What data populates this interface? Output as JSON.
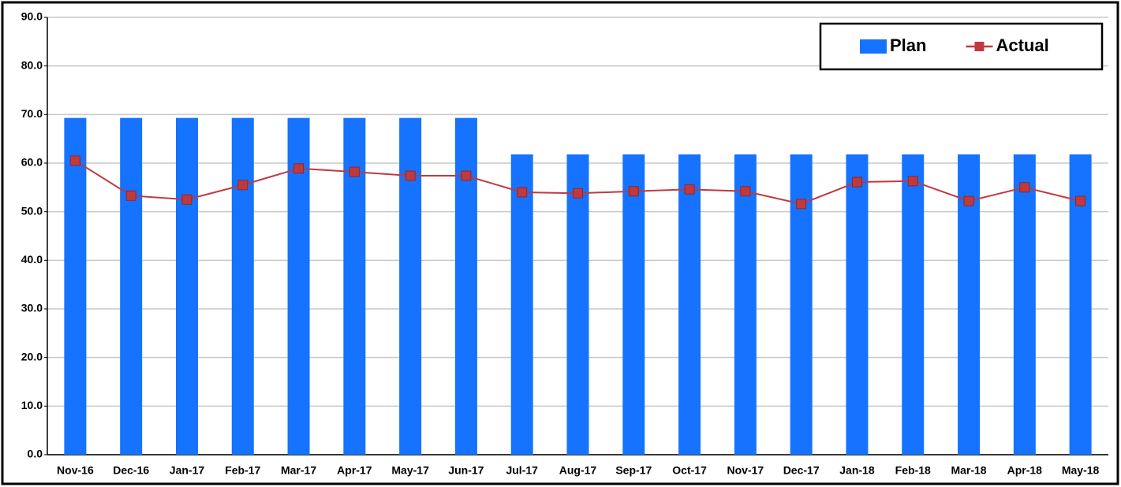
{
  "chart_data": {
    "type": "combo",
    "categories": [
      "Nov-16",
      "Dec-16",
      "Jan-17",
      "Feb-17",
      "Mar-17",
      "Apr-17",
      "May-17",
      "Jun-17",
      "Jul-17",
      "Aug-17",
      "Sep-17",
      "Oct-17",
      "Nov-17",
      "Dec-17",
      "Jan-18",
      "Feb-18",
      "Mar-18",
      "Apr-18",
      "May-18"
    ],
    "series": [
      {
        "name": "Plan",
        "type": "bar",
        "color": "#1673ff",
        "values": [
          69.3,
          69.3,
          69.3,
          69.3,
          69.3,
          69.3,
          69.3,
          69.3,
          61.8,
          61.8,
          61.8,
          61.8,
          61.8,
          61.8,
          61.8,
          61.8,
          61.8,
          61.8,
          61.8
        ]
      },
      {
        "name": "Actual",
        "type": "line",
        "color": "#c0393f",
        "values": [
          60.5,
          53.3,
          52.5,
          55.5,
          58.9,
          58.2,
          57.4,
          57.4,
          54.0,
          53.8,
          54.2,
          54.6,
          54.2,
          51.6,
          56.1,
          56.3,
          52.2,
          55.0,
          52.2
        ]
      }
    ],
    "ylim": [
      0,
      90
    ],
    "yticks": [
      {
        "value": 0,
        "label": "0.0"
      },
      {
        "value": 10,
        "label": "10.0"
      },
      {
        "value": 20,
        "label": "20.0"
      },
      {
        "value": 30,
        "label": "30.0"
      },
      {
        "value": 40,
        "label": "40.0"
      },
      {
        "value": 50,
        "label": "50.0"
      },
      {
        "value": 60,
        "label": "60.0"
      },
      {
        "value": 70,
        "label": "70.0"
      },
      {
        "value": 80,
        "label": "80.0"
      },
      {
        "value": 90,
        "label": "90.0"
      }
    ],
    "grid": true,
    "legend": "upper-right"
  }
}
